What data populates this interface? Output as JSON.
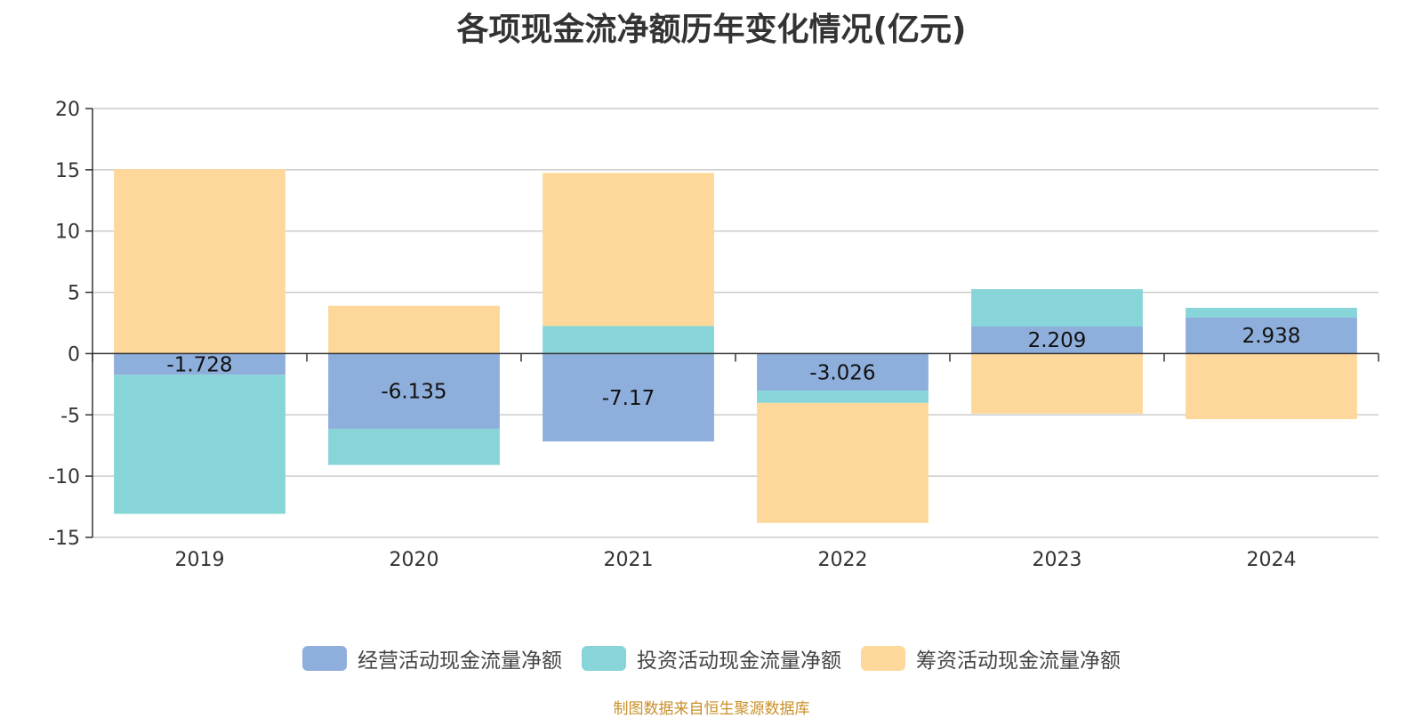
{
  "chart_data": {
    "type": "bar",
    "stacked": true,
    "title": "各项现金流净额历年变化情况(亿元)",
    "categories": [
      "2019",
      "2020",
      "2021",
      "2022",
      "2023",
      "2024"
    ],
    "series": [
      {
        "name": "经营活动现金流量净额",
        "color": "#8eaedb",
        "values": [
          -1.728,
          -6.135,
          -7.17,
          -3.026,
          2.209,
          2.938
        ]
      },
      {
        "name": "投资活动现金流量净额",
        "color": "#87d5d8",
        "values": [
          -11.35,
          -2.95,
          2.25,
          -1.0,
          3.05,
          0.8
        ]
      },
      {
        "name": "筹资活动现金流量净额",
        "color": "#fed89a",
        "values": [
          15.05,
          3.9,
          12.5,
          -9.8,
          -4.9,
          -5.35
        ]
      }
    ],
    "data_labels": [
      "-1.728",
      "-6.135",
      "-7.17",
      "-3.026",
      "2.209",
      "2.938"
    ],
    "ylim": [
      -15,
      20
    ],
    "yticks": [
      {
        "value": 20,
        "label": "20"
      },
      {
        "value": 15,
        "label": "15"
      },
      {
        "value": 10,
        "label": "10"
      },
      {
        "value": 5,
        "label": "5"
      },
      {
        "value": 0,
        "label": "0"
      },
      {
        "value": -5,
        "label": "-5"
      },
      {
        "value": -10,
        "label": "-10"
      },
      {
        "value": -15,
        "label": "-15"
      }
    ],
    "grid": true,
    "legend_position": "bottom"
  },
  "source": "制图数据来自恒生聚源数据库"
}
